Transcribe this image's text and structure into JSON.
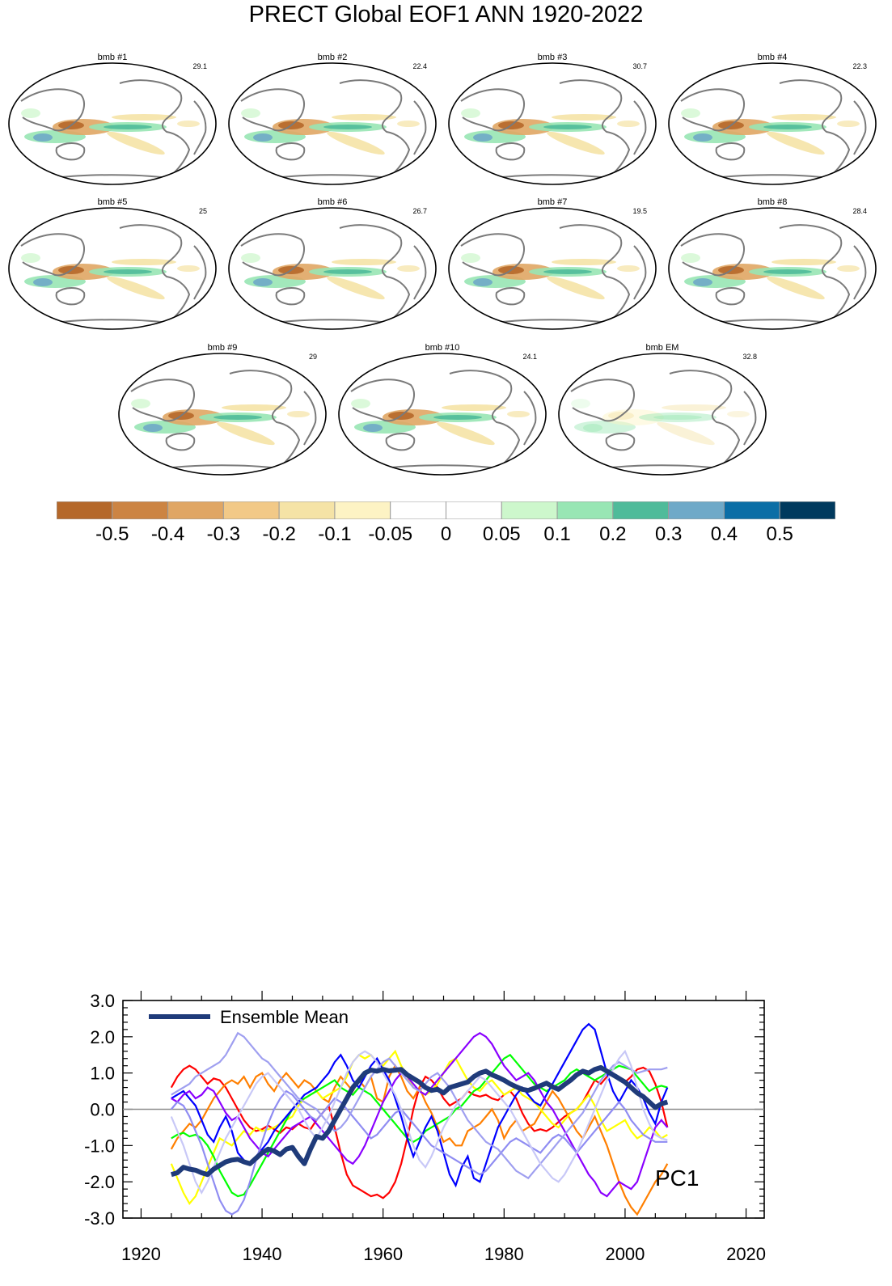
{
  "title": "PRECT Global EOF1 ANN 1920-2022",
  "colors": {
    "ocean": "#ffffff",
    "coast": "#7a7a7a",
    "border": "#000000",
    "zero_line": "#8c8c8c",
    "em_line": "#1f3b7a"
  },
  "maps": [
    {
      "label": "bmb #1",
      "pct": "29.1",
      "dipole": "mixed"
    },
    {
      "label": "bmb #2",
      "pct": "22.4",
      "dipole": "mixed"
    },
    {
      "label": "bmb #3",
      "pct": "30.7",
      "dipole": "mixed"
    },
    {
      "label": "bmb #4",
      "pct": "22.3",
      "dipole": "mixed"
    },
    {
      "label": "bmb #5",
      "pct": "25",
      "dipole": "mixed"
    },
    {
      "label": "bmb #6",
      "pct": "26.7",
      "dipole": "mixed"
    },
    {
      "label": "bmb #7",
      "pct": "19.5",
      "dipole": "mixed"
    },
    {
      "label": "bmb #8",
      "pct": "28.4",
      "dipole": "mixed"
    },
    {
      "label": "bmb #9",
      "pct": "29",
      "dipole": "mixed"
    },
    {
      "label": "bmb #10",
      "pct": "24.1",
      "dipole": "mixed"
    },
    {
      "label": "bmb EM",
      "pct": "32.8",
      "dipole": "weak"
    }
  ],
  "colorbar": {
    "colors": [
      "#b5682a",
      "#cc8443",
      "#e0a664",
      "#f2c987",
      "#f5e3a6",
      "#fdf3c4",
      "#ffffff",
      "#ffffff",
      "#cdf7cc",
      "#98e6b4",
      "#4fbb9a",
      "#6fa9c8",
      "#0b6ea6",
      "#003a5e"
    ],
    "ticks": [
      "-0.5",
      "-0.4",
      "-0.3",
      "-0.2",
      "-0.1",
      "-0.05",
      "0",
      "0.05",
      "0.1",
      "0.2",
      "0.3",
      "0.4",
      "0.5"
    ]
  },
  "chart_data": {
    "type": "line",
    "title": "PC1",
    "legend": {
      "label": "Ensemble Mean",
      "placement": "top-left"
    },
    "xlim": [
      1917,
      2023
    ],
    "ylim": [
      -3.0,
      3.0
    ],
    "x_ticks": [
      "1920",
      "1940",
      "1960",
      "1980",
      "2000",
      "2020"
    ],
    "y_ticks": [
      "3.0",
      "2.0",
      "1.0",
      "0.0",
      "-1.0",
      "-2.0",
      "-3.0"
    ],
    "x_start": 1925,
    "x_step": 1,
    "ensemble_mean": [
      -1.8,
      -1.75,
      -1.6,
      -1.65,
      -1.68,
      -1.75,
      -1.8,
      -1.65,
      -1.55,
      -1.45,
      -1.4,
      -1.38,
      -1.45,
      -1.5,
      -1.35,
      -1.2,
      -1.1,
      -1.15,
      -1.25,
      -1.1,
      -1.05,
      -1.3,
      -1.5,
      -1.1,
      -0.75,
      -0.8,
      -0.6,
      -0.3,
      0.0,
      0.3,
      0.6,
      0.8,
      1.0,
      1.08,
      1.05,
      1.1,
      1.06,
      1.08,
      1.1,
      0.95,
      0.85,
      0.75,
      0.6,
      0.52,
      0.55,
      0.45,
      0.6,
      0.65,
      0.7,
      0.75,
      0.9,
      1.0,
      1.05,
      0.95,
      0.88,
      0.8,
      0.7,
      0.62,
      0.55,
      0.52,
      0.58,
      0.65,
      0.72,
      0.62,
      0.55,
      0.68,
      0.8,
      0.95,
      1.05,
      1.0,
      1.1,
      1.15,
      1.05,
      0.95,
      0.85,
      0.75,
      0.6,
      0.45,
      0.35,
      0.2,
      0.05,
      0.15,
      0.2
    ],
    "series": [
      {
        "name": "red",
        "color": "#ff0000",
        "values": [
          0.6,
          0.9,
          1.1,
          1.2,
          1.1,
          0.9,
          0.7,
          0.85,
          0.8,
          0.6,
          0.3,
          0.0,
          -0.3,
          -0.5,
          -0.6,
          -0.55,
          -0.45,
          -0.55,
          -0.65,
          -0.5,
          -0.55,
          -0.4,
          -0.5,
          -0.55,
          -0.3,
          -0.1,
          0.1,
          -0.5,
          -1.2,
          -1.8,
          -2.1,
          -2.2,
          -2.3,
          -2.4,
          -2.35,
          -2.45,
          -2.3,
          -2.0,
          -1.5,
          -0.8,
          0.0,
          0.6,
          0.9,
          0.8,
          0.6,
          0.3,
          0.1,
          0.2,
          0.3,
          0.5,
          0.4,
          0.35,
          0.4,
          0.3,
          0.25,
          0.4,
          0.5,
          0.3,
          -0.1,
          -0.4,
          -0.6,
          -0.55,
          -0.6,
          -0.5,
          -0.35,
          -0.2,
          -0.1,
          0.0,
          0.2,
          0.5,
          0.8,
          0.7,
          0.9,
          1.0,
          0.85,
          0.75,
          0.9,
          1.1,
          1.15,
          1.05,
          0.7,
          0.2,
          -0.5
        ]
      },
      {
        "name": "orange",
        "color": "#ff7f00",
        "values": [
          -1.1,
          -0.8,
          -0.6,
          -0.4,
          -0.5,
          -0.3,
          0.0,
          0.3,
          0.5,
          0.7,
          0.8,
          0.7,
          0.9,
          0.6,
          0.9,
          1.0,
          0.7,
          0.5,
          0.8,
          1.0,
          0.8,
          0.6,
          0.8,
          0.7,
          0.5,
          0.3,
          0.2,
          0.6,
          0.9,
          0.7,
          0.5,
          0.8,
          0.6,
          0.9,
          0.3,
          0.2,
          0.9,
          1.2,
          0.9,
          0.5,
          0.3,
          0.6,
          0.2,
          -0.1,
          -0.5,
          -0.9,
          -0.8,
          -1.0,
          -1.0,
          -0.6,
          -0.5,
          -0.4,
          -0.2,
          0.0,
          -0.3,
          -0.8,
          -0.5,
          -0.3,
          -0.6,
          -0.5,
          -0.4,
          -0.1,
          0.2,
          0.5,
          0.3,
          0.0,
          -0.3,
          -0.6,
          -0.8,
          -0.5,
          -0.2,
          -0.6,
          -1.0,
          -1.5,
          -2.0,
          -2.4,
          -2.7,
          -2.9,
          -2.6,
          -2.3,
          -2.0,
          -1.8,
          -1.5
        ]
      },
      {
        "name": "yellow",
        "color": "#ffff00",
        "values": [
          -1.5,
          -1.9,
          -2.3,
          -2.6,
          -2.4,
          -2.0,
          -1.6,
          -1.2,
          -0.8,
          -0.9,
          -1.0,
          -0.8,
          -0.6,
          -0.7,
          -0.5,
          -0.6,
          -0.55,
          -0.5,
          -0.4,
          -0.3,
          -0.2,
          0.1,
          0.3,
          0.4,
          0.5,
          0.3,
          0.4,
          0.5,
          0.6,
          0.9,
          1.3,
          1.5,
          1.4,
          1.5,
          1.3,
          1.2,
          1.4,
          1.6,
          1.2,
          0.9,
          0.6,
          0.5,
          0.4,
          0.5,
          0.7,
          1.0,
          1.3,
          1.4,
          1.1,
          0.8,
          0.6,
          0.5,
          0.7,
          0.8,
          0.6,
          0.4,
          0.5,
          0.6,
          0.4,
          0.3,
          0.2,
          0.0,
          -0.2,
          -0.4,
          -0.5,
          -0.3,
          -0.1,
          0.0,
          0.2,
          0.4,
          0.1,
          -0.3,
          -0.6,
          -0.5,
          -0.4,
          -0.3,
          -0.6,
          -0.8,
          -0.7,
          -0.5,
          -0.6,
          -0.8,
          -0.7
        ]
      },
      {
        "name": "green",
        "color": "#00ff00",
        "values": [
          -0.8,
          -0.7,
          -0.65,
          -0.75,
          -0.7,
          -0.8,
          -1.0,
          -1.3,
          -1.7,
          -2.0,
          -2.3,
          -2.4,
          -2.35,
          -2.1,
          -1.8,
          -1.5,
          -1.2,
          -0.9,
          -0.6,
          -0.3,
          0.0,
          0.2,
          0.3,
          0.4,
          0.5,
          0.6,
          0.7,
          0.8,
          0.6,
          0.5,
          0.4,
          0.6,
          0.5,
          0.4,
          0.2,
          0.0,
          -0.2,
          -0.4,
          -0.6,
          -0.8,
          -0.9,
          -0.8,
          -0.6,
          -0.5,
          -0.4,
          -0.3,
          -0.2,
          0.0,
          0.1,
          0.3,
          0.5,
          0.6,
          0.8,
          1.0,
          1.2,
          1.4,
          1.5,
          1.3,
          1.1,
          0.9,
          0.7,
          0.6,
          0.5,
          0.6,
          0.7,
          0.8,
          1.0,
          1.1,
          1.0,
          0.9,
          0.8,
          0.9,
          1.0,
          1.1,
          1.2,
          1.15,
          1.1,
          0.9,
          0.7,
          0.5,
          0.6,
          0.65,
          0.6
        ]
      },
      {
        "name": "blue",
        "color": "#0000ff",
        "values": [
          0.3,
          0.4,
          0.5,
          0.3,
          0.1,
          -0.3,
          -0.7,
          -0.9,
          -0.5,
          -0.2,
          -0.6,
          -1.2,
          -1.4,
          -1.5,
          -1.3,
          -1.1,
          -0.9,
          -0.6,
          -0.4,
          -0.2,
          0.0,
          0.2,
          0.4,
          0.5,
          0.6,
          0.8,
          1.0,
          1.3,
          1.5,
          1.2,
          0.8,
          0.6,
          0.9,
          1.2,
          1.4,
          1.1,
          0.8,
          0.3,
          -0.2,
          -0.8,
          -1.3,
          -0.9,
          -0.5,
          -0.2,
          -0.6,
          -1.2,
          -1.8,
          -2.1,
          -1.6,
          -1.3,
          -1.9,
          -2.0,
          -1.5,
          -1.0,
          -0.5,
          -0.2,
          0.1,
          0.4,
          0.6,
          0.4,
          0.2,
          0.1,
          0.4,
          0.7,
          1.0,
          1.3,
          1.6,
          1.9,
          2.2,
          2.35,
          2.2,
          1.6,
          1.0,
          0.5,
          0.2,
          0.5,
          0.8,
          0.6,
          0.3,
          -0.1,
          -0.4,
          0.2,
          0.6
        ]
      },
      {
        "name": "purple",
        "color": "#8a00ff",
        "values": [
          0.3,
          0.2,
          0.4,
          0.5,
          0.3,
          0.4,
          0.6,
          0.5,
          0.2,
          -0.1,
          -0.3,
          -0.2,
          -0.5,
          -0.8,
          -1.0,
          -1.2,
          -1.3,
          -1.1,
          -0.9,
          -0.7,
          -0.5,
          -0.4,
          -0.3,
          -0.2,
          -0.4,
          -0.6,
          -0.8,
          -1.0,
          -1.2,
          -1.4,
          -1.5,
          -1.3,
          -1.0,
          -0.6,
          -0.2,
          0.2,
          0.5,
          0.8,
          1.0,
          0.9,
          0.7,
          0.5,
          0.4,
          0.6,
          0.8,
          1.0,
          1.2,
          1.4,
          1.6,
          1.8,
          2.0,
          2.1,
          2.0,
          1.8,
          1.5,
          1.2,
          1.0,
          0.8,
          0.9,
          1.0,
          0.8,
          0.5,
          0.2,
          0.0,
          -0.3,
          -0.6,
          -0.9,
          -1.2,
          -1.5,
          -1.8,
          -2.0,
          -2.3,
          -2.4,
          -2.2,
          -2.0,
          -2.1,
          -2.2,
          -2.0,
          -1.5,
          -1.0,
          -0.5,
          -0.3,
          -0.5
        ]
      },
      {
        "name": "slateblue",
        "color": "#8f8cf2",
        "values": [
          0.0,
          0.2,
          0.1,
          -0.2,
          -0.6,
          -1.0,
          -1.5,
          -2.0,
          -2.5,
          -2.8,
          -2.9,
          -2.8,
          -2.5,
          -2.0,
          -1.4,
          -0.9,
          -0.4,
          0.0,
          0.3,
          0.5,
          0.4,
          0.2,
          0.0,
          -0.2,
          -0.3,
          -0.1,
          0.1,
          0.3,
          0.2,
          0.0,
          -0.2,
          -0.4,
          -0.6,
          -0.8,
          -0.7,
          -0.5,
          -0.3,
          -0.1,
          0.0,
          -0.2,
          -0.4,
          -0.6,
          -0.8,
          -1.0,
          -1.1,
          -1.2,
          -1.3,
          -1.4,
          -1.5,
          -1.6,
          -1.7,
          -1.8,
          -1.7,
          -1.5,
          -1.3,
          -1.1,
          -0.9,
          -0.8,
          -0.9,
          -1.0,
          -1.1,
          -1.2,
          -1.0,
          -0.8,
          -0.7,
          -0.8,
          -1.0,
          -1.2,
          -1.0,
          -0.8,
          -0.6,
          -0.4,
          -0.2,
          0.0,
          0.2,
          0.0,
          -0.3,
          -0.5,
          -0.7,
          -0.8,
          -0.9,
          -0.9,
          -0.9
        ]
      },
      {
        "name": "periwinkle",
        "color": "#9f9ff0",
        "values": [
          0.4,
          0.5,
          0.6,
          0.7,
          0.9,
          1.0,
          1.1,
          1.2,
          1.3,
          1.5,
          1.8,
          2.1,
          2.0,
          1.8,
          1.6,
          1.4,
          1.3,
          1.1,
          0.9,
          0.7,
          0.5,
          0.3,
          0.2,
          0.1,
          0.0,
          -0.2,
          -0.4,
          -0.6,
          -0.5,
          -0.3,
          0.0,
          0.3,
          0.6,
          0.9,
          1.1,
          1.3,
          1.4,
          1.2,
          1.0,
          0.8,
          0.6,
          0.5,
          0.7,
          0.9,
          1.0,
          0.8,
          0.6,
          0.3,
          0.0,
          -0.3,
          -0.5,
          -0.7,
          -0.9,
          -1.0,
          -1.1,
          -1.3,
          -1.5,
          -1.7,
          -1.8,
          -1.9,
          -1.7,
          -1.5,
          -1.3,
          -1.1,
          -0.9,
          -0.7,
          -0.5,
          -0.3,
          -0.1,
          0.2,
          0.5,
          0.8,
          1.0,
          1.2,
          1.3,
          1.2,
          1.1,
          1.0,
          1.05,
          1.1,
          1.1,
          1.1,
          1.15
        ]
      },
      {
        "name": "lavender",
        "color": "#c8c8f7",
        "values": [
          -0.2,
          -0.6,
          -1.0,
          -1.5,
          -2.0,
          -2.3,
          -2.0,
          -1.6,
          -1.2,
          -0.8,
          -0.5,
          -0.2,
          0.1,
          0.4,
          0.7,
          0.9,
          1.0,
          0.8,
          0.6,
          0.4,
          0.2,
          0.0,
          -0.3,
          -0.6,
          -0.8,
          -0.5,
          -0.2,
          0.2,
          0.6,
          1.0,
          1.3,
          1.5,
          1.6,
          1.5,
          1.3,
          1.0,
          0.7,
          0.4,
          0.0,
          -0.5,
          -1.0,
          -1.4,
          -1.6,
          -1.3,
          -0.9,
          -0.5,
          -0.2,
          0.1,
          0.3,
          0.5,
          0.7,
          0.9,
          0.8,
          0.6,
          0.4,
          0.2,
          0.0,
          -0.3,
          -0.6,
          -0.9,
          -1.2,
          -1.5,
          -1.7,
          -1.9,
          -2.0,
          -1.8,
          -1.5,
          -1.2,
          -0.8,
          -0.4,
          0.0,
          0.4,
          0.8,
          1.1,
          1.4,
          1.6,
          1.2,
          0.6,
          0.0,
          -0.4,
          -0.7,
          -0.8,
          -0.85
        ]
      }
    ]
  }
}
